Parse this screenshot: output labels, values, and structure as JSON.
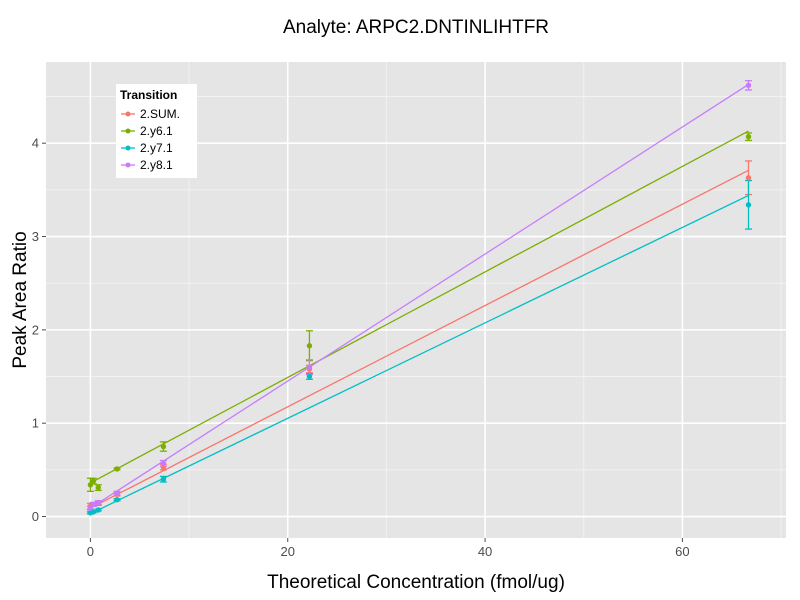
{
  "chart_data": {
    "type": "scatter",
    "title": "Analyte: ARPC2.DNTINLIHTFR",
    "xlabel": "Theoretical Concentration (fmol/ug)",
    "ylabel": "Peak Area Ratio",
    "xlim": [
      -4.5,
      70.5
    ],
    "ylim": [
      -0.23,
      4.87
    ],
    "x_ticks": [
      0,
      20,
      40,
      60
    ],
    "y_ticks": [
      0,
      1,
      2,
      3,
      4
    ],
    "grid": true,
    "legend": {
      "title": "Transition",
      "position": "top-left"
    },
    "series": [
      {
        "name": "2.SUM.",
        "color": "#F8766D",
        "points": [
          {
            "x": 0,
            "y": 0.11,
            "err": 0.03
          },
          {
            "x": 0.3,
            "y": 0.13,
            "err": 0.02
          },
          {
            "x": 0.8,
            "y": 0.14,
            "err": 0.02
          },
          {
            "x": 2.7,
            "y": 0.24,
            "err": 0.02
          },
          {
            "x": 7.4,
            "y": 0.53,
            "err": 0.03
          },
          {
            "x": 22.2,
            "y": 1.58,
            "err": 0.04
          },
          {
            "x": 66.7,
            "y": 3.63,
            "err": 0.18
          }
        ],
        "fit": [
          [
            0,
            0.09
          ],
          [
            66.7,
            3.71
          ]
        ]
      },
      {
        "name": "2.y6.1",
        "color": "#7CAE00",
        "points": [
          {
            "x": 0,
            "y": 0.34,
            "err": 0.07
          },
          {
            "x": 0.3,
            "y": 0.38,
            "err": 0.03
          },
          {
            "x": 0.8,
            "y": 0.31,
            "err": 0.03
          },
          {
            "x": 2.7,
            "y": 0.51,
            "err": 0.01
          },
          {
            "x": 7.4,
            "y": 0.75,
            "err": 0.05
          },
          {
            "x": 22.2,
            "y": 1.83,
            "err": 0.16
          },
          {
            "x": 66.7,
            "y": 4.07,
            "err": 0.04
          }
        ],
        "fit": [
          [
            0,
            0.36
          ],
          [
            66.7,
            4.13
          ]
        ]
      },
      {
        "name": "2.y7.1",
        "color": "#00BFC4",
        "points": [
          {
            "x": 0,
            "y": 0.04,
            "err": 0.01
          },
          {
            "x": 0.3,
            "y": 0.05,
            "err": 0.01
          },
          {
            "x": 0.8,
            "y": 0.07,
            "err": 0.01
          },
          {
            "x": 2.7,
            "y": 0.18,
            "err": 0.01
          },
          {
            "x": 7.4,
            "y": 0.4,
            "err": 0.03
          },
          {
            "x": 22.2,
            "y": 1.5,
            "err": 0.03
          },
          {
            "x": 66.7,
            "y": 3.34,
            "err": 0.26
          }
        ],
        "fit": [
          [
            0,
            0.03
          ],
          [
            66.7,
            3.44
          ]
        ]
      },
      {
        "name": "2.y8.1",
        "color": "#C77CFF",
        "points": [
          {
            "x": 0,
            "y": 0.09,
            "err": 0.02
          },
          {
            "x": 0.3,
            "y": 0.13,
            "err": 0.02
          },
          {
            "x": 0.8,
            "y": 0.15,
            "err": 0.02
          },
          {
            "x": 2.7,
            "y": 0.25,
            "err": 0.02
          },
          {
            "x": 7.4,
            "y": 0.57,
            "err": 0.03
          },
          {
            "x": 22.2,
            "y": 1.6,
            "err": 0.08
          },
          {
            "x": 66.7,
            "y": 4.62,
            "err": 0.05
          }
        ],
        "fit": [
          [
            0,
            0.09
          ],
          [
            66.7,
            4.63
          ]
        ]
      }
    ]
  }
}
